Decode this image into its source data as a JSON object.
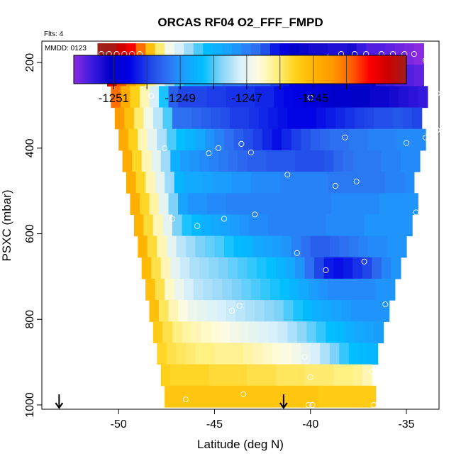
{
  "chart_data": {
    "type": "heatmap",
    "title": "ORCAS RF04 O2_FFF_FMPD",
    "flights_note": "Flts: 4",
    "date_note": "MMDD: 0123",
    "xlabel": "Latitude (deg N)",
    "ylabel": "PSXC (mbar)",
    "xlim": [
      -54,
      -33.3
    ],
    "ylim": [
      1010,
      150
    ],
    "x_ticks": [
      -50,
      -45,
      -40,
      -35
    ],
    "x_tick_labels": [
      "-50",
      "-45",
      "-40",
      "-35"
    ],
    "y_ticks": [
      200,
      400,
      600,
      800,
      1000
    ],
    "y_tick_labels": [
      "200",
      "400",
      "600",
      "800",
      "1000"
    ],
    "colorbar": {
      "range": [
        -1252.2,
        -1242.2
      ],
      "tick_values": [
        -1251,
        -1249,
        -1247,
        -1245
      ],
      "tick_labels": [
        "-1251",
        "-1249",
        "-1247",
        "-1245"
      ],
      "minor_lines": [
        -1251,
        -1250,
        -1249,
        -1248,
        -1247,
        -1246,
        -1245,
        -1244
      ],
      "colors": [
        "#8a2be2",
        "#3a1ae0",
        "#0000c8",
        "#0000e6",
        "#1e40e8",
        "#2e6ef0",
        "#1aa0ff",
        "#00bfff",
        "#87d4f8",
        "#d8f0fb",
        "#fffbe0",
        "#fff080",
        "#ffd21a",
        "#ffb300",
        "#ff9900",
        "#ff6000",
        "#ff0000",
        "#cd0000",
        "#a0201a"
      ]
    },
    "rows": [
      {
        "p": 180,
        "lat_start": -51.1,
        "values": [
          -1242.2,
          -1242.3,
          -1242.8,
          -1243.2,
          -1244.0,
          -1245.2,
          -1246.0,
          -1246.8,
          -1247.2,
          -1247.6,
          -1248.0,
          -1248.4,
          -1248.6,
          -1248.8,
          -1249.0,
          -1249.2,
          -1249.4,
          -1249.8,
          -1250.3,
          -1250.7,
          -1251.0,
          -1251.2,
          -1251.3,
          -1251.3,
          -1251.4,
          -1251.4,
          -1251.3,
          -1251.6,
          -1251.8,
          -1251.8,
          -1251.9,
          -1252.0,
          -1252.1,
          -1252.2
        ]
      },
      {
        "p": 230,
        "lat_start": -50.6,
        "values": [
          -1243.0,
          -1243.8,
          -1244.6,
          -1245.3,
          -1246.2,
          -1247.0,
          -1247.6,
          -1248.1,
          -1248.5,
          -1248.7,
          -1248.9,
          -1249.1,
          -1249.3,
          -1249.3,
          -1249.4,
          -1249.5,
          -1249.6,
          -1249.9,
          -1250.3,
          -1250.6,
          -1250.8,
          -1250.9,
          -1251.0,
          -1251.1,
          -1251.1,
          -1251.2,
          -1251.2,
          -1251.2,
          -1251.6,
          -1251.7,
          -1251.8,
          -1251.8,
          -1251.9
        ]
      },
      {
        "p": 280,
        "lat_start": -50.4,
        "values": [
          -1244.0,
          -1244.8,
          -1245.5,
          -1246.4,
          -1247.2,
          -1248.2,
          -1249.6,
          -1249.9,
          -1249.9,
          -1249.9,
          -1250.0,
          -1250.0,
          -1250.1,
          -1250.1,
          -1250.1,
          -1250.2,
          -1250.2,
          -1250.4,
          -1250.5,
          -1250.6,
          -1250.7,
          -1250.8,
          -1250.9,
          -1251.0,
          -1251.0,
          -1251.1,
          -1251.1,
          -1251.2,
          -1251.2,
          -1251.3,
          -1251.4,
          -1251.5,
          -1251.6
        ]
      },
      {
        "p": 330,
        "lat_start": -50.2,
        "values": [
          -1244.5,
          -1245.2,
          -1246.0,
          -1246.8,
          -1247.4,
          -1248.0,
          -1249.4,
          -1249.4,
          -1249.5,
          -1249.6,
          -1249.7,
          -1249.8,
          -1250.0,
          -1250.0,
          -1250.1,
          -1250.2,
          -1250.3,
          -1250.4,
          -1250.5,
          -1250.5,
          -1250.5,
          -1250.4,
          -1250.3,
          -1250.2,
          -1250.1,
          -1250.0,
          -1249.9,
          -1249.8,
          -1249.8,
          -1249.7,
          -1249.8,
          -1249.9
        ]
      },
      {
        "p": 380,
        "lat_start": -50.0,
        "values": [
          -1244.8,
          -1245.5,
          -1246.4,
          -1247.0,
          -1247.5,
          -1248.0,
          -1248.3,
          -1248.5,
          -1248.7,
          -1249.0,
          -1249.2,
          -1249.4,
          -1249.6,
          -1249.8,
          -1250.0,
          -1250.2,
          -1250.4,
          -1250.2,
          -1250.0,
          -1249.8,
          -1249.6,
          -1249.5,
          -1249.4,
          -1249.4,
          -1249.3,
          -1249.3,
          -1249.2,
          -1249.2,
          -1249.2,
          -1249.1,
          -1249.1,
          -1249.1
        ]
      },
      {
        "p": 430,
        "lat_start": -49.8,
        "values": [
          -1244.8,
          -1245.6,
          -1246.4,
          -1247.0,
          -1247.6,
          -1248.6,
          -1248.9,
          -1249.0,
          -1249.1,
          -1249.2,
          -1249.3,
          -1249.4,
          -1249.5,
          -1249.6,
          -1249.6,
          -1249.7,
          -1249.7,
          -1249.7,
          -1249.8,
          -1249.8,
          -1249.8,
          -1249.7,
          -1249.5,
          -1249.4,
          -1249.3,
          -1249.3,
          -1249.3,
          -1249.2,
          -1249.2,
          -1249.1,
          -1249.1
        ]
      },
      {
        "p": 480,
        "lat_start": -49.6,
        "values": [
          -1244.9,
          -1245.6,
          -1246.4,
          -1247.0,
          -1247.6,
          -1248.5,
          -1248.7,
          -1248.7,
          -1248.8,
          -1248.9,
          -1248.9,
          -1249.0,
          -1249.0,
          -1249.1,
          -1249.1,
          -1249.1,
          -1249.2,
          -1249.2,
          -1249.2,
          -1249.2,
          -1249.2,
          -1249.3,
          -1249.3,
          -1249.3,
          -1249.3,
          -1249.3,
          -1249.3,
          -1249.2,
          -1249.2,
          -1249.1
        ]
      },
      {
        "p": 530,
        "lat_start": -49.4,
        "values": [
          -1244.9,
          -1245.6,
          -1246.3,
          -1247.0,
          -1247.8,
          -1248.8,
          -1249.0,
          -1249.0,
          -1249.1,
          -1249.1,
          -1249.2,
          -1249.2,
          -1249.2,
          -1249.2,
          -1249.2,
          -1249.2,
          -1249.2,
          -1249.2,
          -1249.2,
          -1249.2,
          -1249.2,
          -1249.1,
          -1249.1,
          -1249.1,
          -1249.1,
          -1249.1,
          -1249.0,
          -1249.0,
          -1249.0,
          -1249.0
        ]
      },
      {
        "p": 580,
        "lat_start": -49.2,
        "values": [
          -1245.0,
          -1245.7,
          -1246.4,
          -1247.0,
          -1247.8,
          -1248.2,
          -1248.4,
          -1248.6,
          -1248.7,
          -1248.8,
          -1248.9,
          -1249.0,
          -1249.1,
          -1249.1,
          -1249.2,
          -1249.2,
          -1249.2,
          -1249.2,
          -1249.2,
          -1249.2,
          -1249.1,
          -1249.1,
          -1249.1,
          -1249.1,
          -1249.0,
          -1249.0,
          -1249.0,
          -1249.0,
          -1249.0
        ]
      },
      {
        "p": 630,
        "lat_start": -49.0,
        "values": [
          -1245.0,
          -1245.7,
          -1246.4,
          -1247.0,
          -1247.4,
          -1247.6,
          -1247.8,
          -1247.9,
          -1248.0,
          -1248.2,
          -1248.4,
          -1248.5,
          -1248.7,
          -1248.8,
          -1248.9,
          -1249.0,
          -1249.2,
          -1249.4,
          -1249.6,
          -1249.6,
          -1249.5,
          -1249.4,
          -1249.3,
          -1249.2,
          -1249.1,
          -1249.1,
          -1249.0,
          -1249.0
        ]
      },
      {
        "p": 680,
        "lat_start": -48.8,
        "values": [
          -1245.1,
          -1245.8,
          -1246.4,
          -1247.0,
          -1247.3,
          -1247.5,
          -1247.6,
          -1247.7,
          -1247.8,
          -1247.9,
          -1248.0,
          -1248.1,
          -1248.2,
          -1248.3,
          -1248.5,
          -1248.7,
          -1249.0,
          -1249.4,
          -1249.9,
          -1250.3,
          -1250.4,
          -1250.3,
          -1250.1,
          -1249.9,
          -1249.5,
          -1249.2,
          -1249.0
        ]
      },
      {
        "p": 730,
        "lat_start": -48.6,
        "values": [
          -1245.2,
          -1245.8,
          -1246.5,
          -1246.9,
          -1247.2,
          -1247.4,
          -1247.5,
          -1247.6,
          -1247.7,
          -1247.8,
          -1247.9,
          -1248.0,
          -1248.1,
          -1248.2,
          -1248.3,
          -1248.5,
          -1248.7,
          -1248.9,
          -1249.0,
          -1249.1,
          -1249.1,
          -1249.1,
          -1249.1,
          -1249.1,
          -1249.0,
          -1249.0
        ]
      },
      {
        "p": 780,
        "lat_start": -48.4,
        "values": [
          -1245.2,
          -1245.9,
          -1246.4,
          -1246.7,
          -1246.9,
          -1247.0,
          -1247.1,
          -1247.2,
          -1247.3,
          -1247.4,
          -1247.5,
          -1247.6,
          -1247.7,
          -1247.8,
          -1248.0,
          -1248.2,
          -1248.4,
          -1248.6,
          -1248.7,
          -1248.8,
          -1248.9,
          -1249.0,
          -1249.0,
          -1249.0,
          -1249.0
        ]
      },
      {
        "p": 830,
        "lat_start": -48.2,
        "values": [
          -1245.4,
          -1245.8,
          -1246.1,
          -1246.3,
          -1246.4,
          -1246.5,
          -1246.6,
          -1246.7,
          -1246.8,
          -1246.9,
          -1247.0,
          -1247.1,
          -1247.2,
          -1247.3,
          -1247.5,
          -1247.7,
          -1247.9,
          -1248.1,
          -1248.3,
          -1248.4,
          -1248.6,
          -1248.7,
          -1248.8,
          -1248.9
        ]
      },
      {
        "p": 880,
        "lat_start": -48.0,
        "values": [
          -1245.6,
          -1245.8,
          -1245.9,
          -1246.0,
          -1246.1,
          -1246.1,
          -1246.2,
          -1246.2,
          -1246.2,
          -1246.3,
          -1246.4,
          -1246.5,
          -1246.6,
          -1246.7,
          -1246.8,
          -1247.0,
          -1247.2,
          -1247.5,
          -1247.8,
          -1248.1,
          -1248.3,
          -1248.4,
          -1248.5
        ]
      },
      {
        "p": 930,
        "lat_start": -47.8,
        "values": [
          -1245.5,
          -1245.6,
          -1245.6,
          -1245.6,
          -1245.6,
          -1245.7,
          -1245.7,
          -1245.7,
          -1245.7,
          -1245.8,
          -1245.8,
          -1245.8,
          -1245.9,
          -1245.9,
          -1245.9,
          -1246.0,
          -1246.0,
          -1246.0,
          -1246.1,
          -1246.1,
          -1246.2,
          -1246.4
        ]
      },
      {
        "p": 980,
        "lat_start": -47.6,
        "values": [
          -1245.3,
          -1245.3,
          -1245.3,
          -1245.3,
          -1245.3,
          -1245.3,
          -1245.3,
          -1245.3,
          -1245.3,
          -1245.3,
          -1245.3,
          -1245.3,
          -1245.3,
          -1245.3,
          -1245.3,
          -1245.3,
          -1245.4,
          -1245.4,
          -1245.4,
          -1245.4,
          -1245.4,
          -1245.4
        ]
      }
    ],
    "cell_width_deg": 0.5,
    "row_height_mbar": 50,
    "points": [
      {
        "lat": -50.9,
        "p": 180
      },
      {
        "lat": -50.5,
        "p": 180
      },
      {
        "lat": -50.1,
        "p": 180
      },
      {
        "lat": -49.7,
        "p": 180
      },
      {
        "lat": -49.3,
        "p": 180
      },
      {
        "lat": -48.9,
        "p": 180
      },
      {
        "lat": -39.1,
        "p": 188
      },
      {
        "lat": -38.4,
        "p": 180
      },
      {
        "lat": -37.7,
        "p": 180
      },
      {
        "lat": -37.1,
        "p": 180
      },
      {
        "lat": -36.3,
        "p": 180
      },
      {
        "lat": -35.7,
        "p": 180
      },
      {
        "lat": -35.1,
        "p": 180
      },
      {
        "lat": -34.6,
        "p": 180
      },
      {
        "lat": -34.0,
        "p": 195
      },
      {
        "lat": -33.4,
        "p": 272
      },
      {
        "lat": -48.3,
        "p": 278
      },
      {
        "lat": -40.0,
        "p": 282
      },
      {
        "lat": -33.4,
        "p": 358
      },
      {
        "lat": -38.2,
        "p": 375
      },
      {
        "lat": -34.0,
        "p": 375
      },
      {
        "lat": -35.0,
        "p": 388
      },
      {
        "lat": -43.6,
        "p": 390
      },
      {
        "lat": -47.6,
        "p": 400
      },
      {
        "lat": -44.8,
        "p": 400
      },
      {
        "lat": -45.3,
        "p": 412
      },
      {
        "lat": -43.1,
        "p": 410
      },
      {
        "lat": -41.2,
        "p": 462
      },
      {
        "lat": -37.6,
        "p": 478
      },
      {
        "lat": -38.7,
        "p": 488
      },
      {
        "lat": -47.2,
        "p": 565
      },
      {
        "lat": -44.5,
        "p": 565
      },
      {
        "lat": -42.9,
        "p": 555
      },
      {
        "lat": -34.5,
        "p": 550
      },
      {
        "lat": -45.9,
        "p": 582
      },
      {
        "lat": -40.7,
        "p": 645
      },
      {
        "lat": -37.2,
        "p": 665
      },
      {
        "lat": -39.2,
        "p": 685
      },
      {
        "lat": -36.1,
        "p": 765
      },
      {
        "lat": -43.7,
        "p": 768
      },
      {
        "lat": -44.1,
        "p": 780
      },
      {
        "lat": -40.3,
        "p": 888
      },
      {
        "lat": -36.8,
        "p": 922
      },
      {
        "lat": -40.0,
        "p": 935
      },
      {
        "lat": -43.5,
        "p": 975
      },
      {
        "lat": -46.5,
        "p": 987
      },
      {
        "lat": -40.1,
        "p": 1000
      },
      {
        "lat": -39.9,
        "p": 1000
      },
      {
        "lat": -36.7,
        "p": 1000
      }
    ],
    "arrows_lat": [
      -53.1,
      -41.4
    ]
  }
}
